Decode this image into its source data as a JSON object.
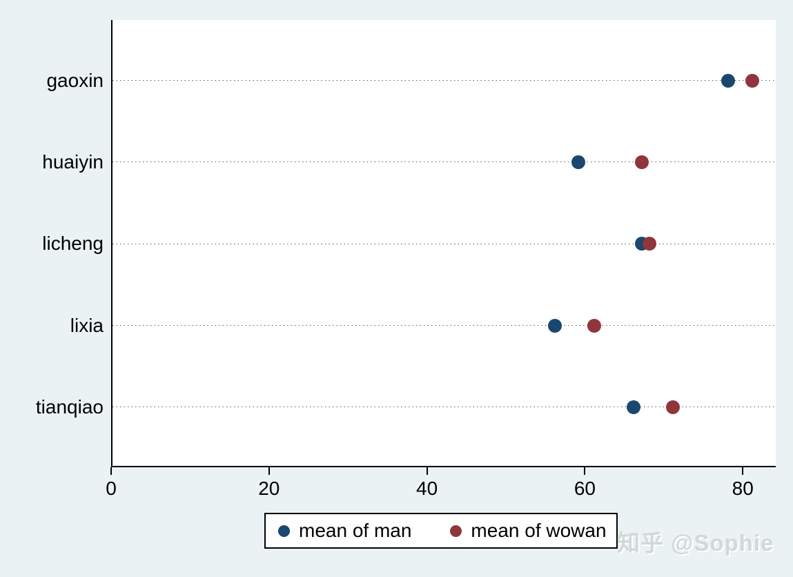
{
  "watermark": {
    "text": "知乎 @Sophie"
  },
  "colors": {
    "background": "#eaf2f3",
    "plot_background": "#ffffff",
    "axis": "#000000",
    "man": "#1a476f",
    "woman": "#90353b",
    "watermark": "#d2d8da"
  },
  "legend": {
    "items": [
      {
        "label": "mean of man",
        "color_key": "man"
      },
      {
        "label": "mean of wowan",
        "color_key": "woman"
      }
    ]
  },
  "chart_data": {
    "type": "scatter",
    "subtype": "horizontal-dot-plot",
    "title": "",
    "xlabel": "",
    "ylabel": "",
    "categories": [
      "gaoxin",
      "huaiyin",
      "licheng",
      "lixia",
      "tianqiao"
    ],
    "series": [
      {
        "name": "mean of man",
        "color_key": "man",
        "values": [
          78,
          59,
          67,
          56,
          66
        ]
      },
      {
        "name": "mean of wowan",
        "color_key": "woman",
        "values": [
          81,
          67,
          68,
          61,
          71
        ]
      }
    ],
    "x_ticks": [
      0,
      20,
      40,
      60,
      80
    ],
    "xlim": [
      0,
      84
    ],
    "grid": "horizontal-dotted",
    "legend_position": "bottom"
  }
}
